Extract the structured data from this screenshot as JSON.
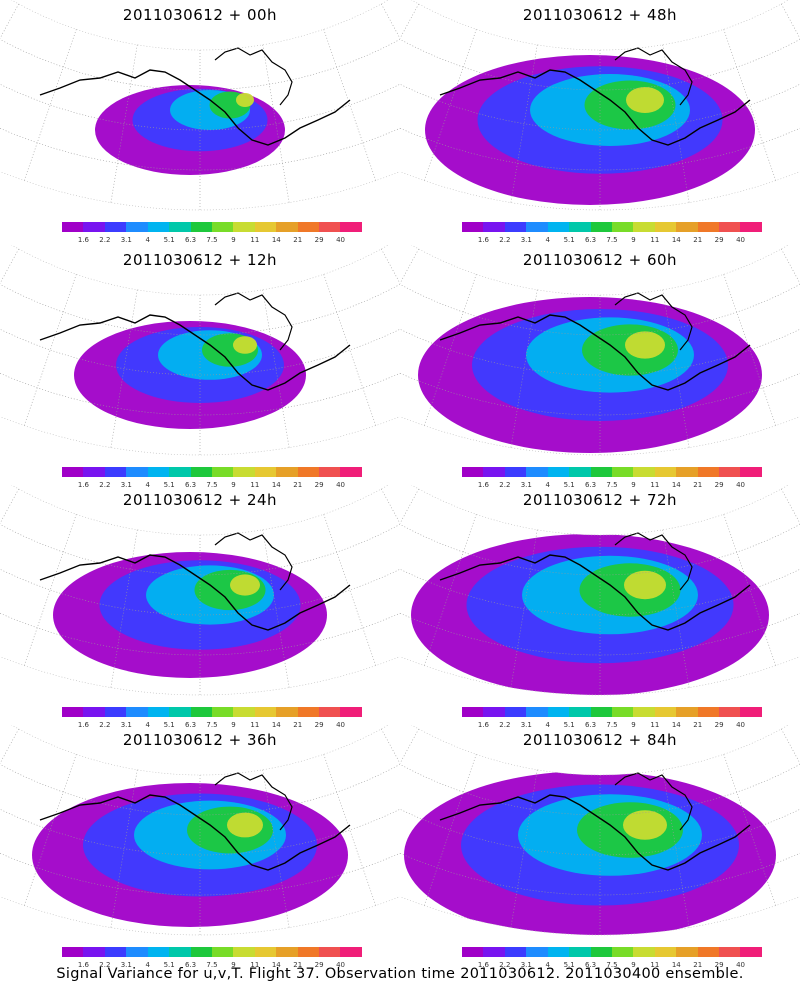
{
  "panels": [
    {
      "title": "2011030612 + 00h",
      "coverage": 0.25
    },
    {
      "title": "2011030612 + 12h",
      "coverage": 0.4
    },
    {
      "title": "2011030612 + 24h",
      "coverage": 0.55
    },
    {
      "title": "2011030612 + 36h",
      "coverage": 0.7
    },
    {
      "title": "2011030612 + 48h",
      "coverage": 0.75
    },
    {
      "title": "2011030612 + 60h",
      "coverage": 0.8
    },
    {
      "title": "2011030612 + 72h",
      "coverage": 0.85
    },
    {
      "title": "2011030612 + 84h",
      "coverage": 0.9
    }
  ],
  "colorbar": {
    "labels": [
      "1.6",
      "2.2",
      "3.1",
      "4",
      "5.1",
      "6.3",
      "7.5",
      "9",
      "11",
      "14",
      "21",
      "29",
      "40"
    ],
    "colors": [
      "#a000c8",
      "#7814f0",
      "#3c3cff",
      "#1e8cff",
      "#00b4f0",
      "#00c8aa",
      "#1ec83c",
      "#78dc28",
      "#c8dc32",
      "#e6c832",
      "#e6a028",
      "#f07828",
      "#f05050",
      "#f01e78"
    ]
  },
  "footer": "Signal Variance for u,v,T. Flight 37. Observation time 2011030612. 2011030400 ensemble."
}
